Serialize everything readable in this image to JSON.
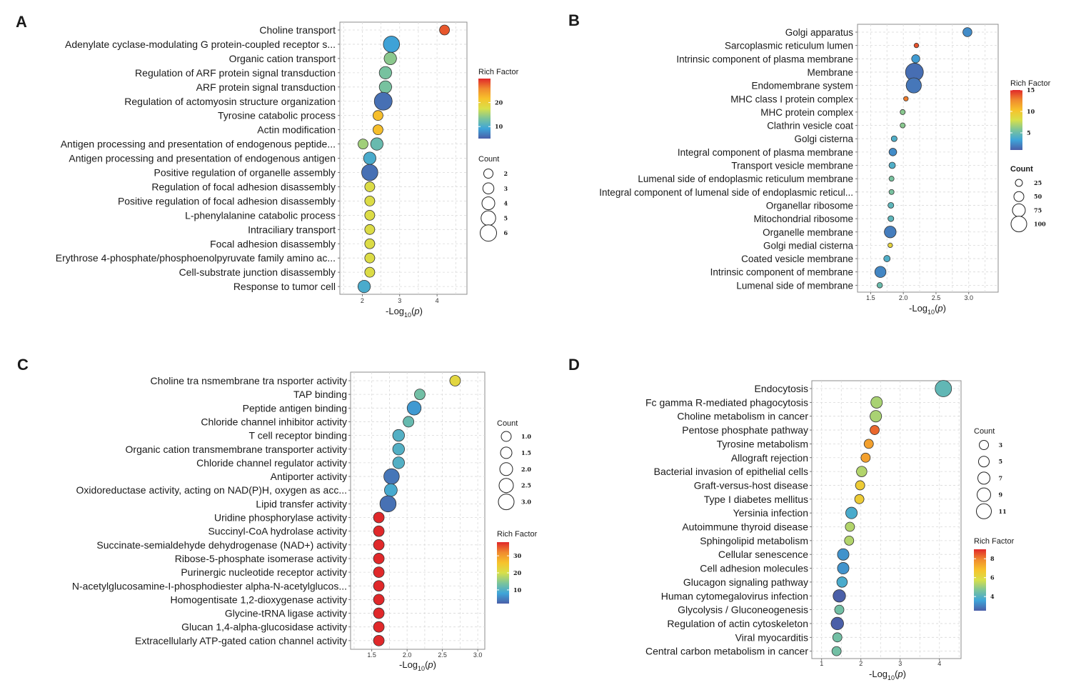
{
  "colors": {
    "grid": "#d9d9d9",
    "frame": "#8c8c8c",
    "bubble_stroke": "#333333",
    "gradient": [
      "#4a5fa8",
      "#3ea5d9",
      "#7cc49a",
      "#d8e04a",
      "#f7c22b",
      "#f08a2e",
      "#e0282a"
    ]
  },
  "chart_data": [
    {
      "panel": "A",
      "type": "scatter",
      "xlabel_base": "-Log",
      "xlabel_sub": "10",
      "xlabel_p": "p",
      "xlim": [
        1.4,
        4.8
      ],
      "xticks": [
        "2",
        "3",
        "4"
      ],
      "xtick_values": [
        2,
        3,
        4
      ],
      "terms": [
        "Choline transport",
        "Adenylate cyclase-modulating G protein-coupled receptor s...",
        "Organic cation transport",
        "Regulation of ARF protein signal transduction",
        "ARF protein signal transduction",
        "Regulation of actomyosin structure organization",
        "Tyrosine catabolic process",
        "Actin modification",
        "Antigen processing and presentation of endogenous peptide...",
        "Antigen processing and presentation of endogenous antigen",
        "Positive regulation of organelle assembly",
        "Regulation of focal adhesion disassembly",
        "Positive regulation of focal adhesion disassembly",
        "L-phenylalanine catabolic process",
        "Intraciliary transport",
        "Focal adhesion disassembly",
        "Erythrose 4-phosphate/phosphoenolpyruvate family amino ac...",
        "Cell-substrate junction disassembly",
        "Response to tumor cell"
      ],
      "points": [
        {
          "row": 0,
          "x": 4.2,
          "rich": 28,
          "count": 2
        },
        {
          "row": 1,
          "x": 2.78,
          "rich": 9,
          "count": 5
        },
        {
          "row": 2,
          "x": 2.75,
          "rich": 14,
          "count": 3
        },
        {
          "row": 3,
          "x": 2.62,
          "rich": 13,
          "count": 3
        },
        {
          "row": 4,
          "x": 2.62,
          "rich": 13,
          "count": 3
        },
        {
          "row": 5,
          "x": 2.56,
          "rich": 6,
          "count": 6
        },
        {
          "row": 6,
          "x": 2.42,
          "rich": 22,
          "count": 2
        },
        {
          "row": 7,
          "x": 2.42,
          "rich": 22,
          "count": 2
        },
        {
          "row": 8,
          "x": 2.02,
          "rich": 15,
          "count": 2
        },
        {
          "row": 8,
          "x": 2.39,
          "rich": 12,
          "count": 3
        },
        {
          "row": 9,
          "x": 2.2,
          "rich": 10,
          "count": 3
        },
        {
          "row": 10,
          "x": 2.2,
          "rich": 6,
          "count": 5
        },
        {
          "row": 11,
          "x": 2.2,
          "rich": 18,
          "count": 2
        },
        {
          "row": 12,
          "x": 2.2,
          "rich": 18,
          "count": 2
        },
        {
          "row": 13,
          "x": 2.2,
          "rich": 18,
          "count": 2
        },
        {
          "row": 14,
          "x": 2.2,
          "rich": 18,
          "count": 2
        },
        {
          "row": 15,
          "x": 2.2,
          "rich": 18,
          "count": 2
        },
        {
          "row": 16,
          "x": 2.2,
          "rich": 18,
          "count": 2
        },
        {
          "row": 17,
          "x": 2.2,
          "rich": 18,
          "count": 2
        },
        {
          "row": 18,
          "x": 2.05,
          "rich": 10,
          "count": 3
        }
      ],
      "color_legend": {
        "title": "Rich Factor",
        "ticks": [
          "20",
          "10"
        ],
        "tick_values": [
          20,
          10
        ],
        "range": [
          5,
          30
        ]
      },
      "size_legend": {
        "title": "Count",
        "ticks": [
          "2",
          "3",
          "4",
          "5",
          "6"
        ],
        "values": [
          2,
          3,
          4,
          5,
          6
        ]
      },
      "size_domain": [
        2,
        6
      ]
    },
    {
      "panel": "B",
      "type": "scatter",
      "xlabel_base": "-Log",
      "xlabel_sub": "10",
      "xlabel_p": "p",
      "xlim": [
        1.3,
        3.45
      ],
      "xticks": [
        "1.5",
        "2.0",
        "2.5",
        "3.0"
      ],
      "xtick_values": [
        1.5,
        2.0,
        2.5,
        3.0
      ],
      "terms": [
        "Golgi apparatus",
        "Sarcoplasmic reticulum lumen",
        "Intrinsic component of plasma membrane",
        "Membrane",
        "Endomembrane system",
        "MHC class I protein complex",
        "MHC protein complex",
        "Clathrin vesicle coat",
        "Golgi cisterna",
        "Integral component of plasma membrane",
        "Transport vesicle membrane",
        "Lumenal side of endoplasmic reticulum membrane",
        "Integral component of lumenal side of endoplasmic reticul...",
        "Organellar ribosome",
        "Mitochondrial ribosome",
        "Organelle membrane",
        "Golgi medial cisterna",
        "Coated vesicle membrane",
        "Intrinsic component of membrane",
        "Lumenal side of membrane"
      ],
      "points": [
        {
          "row": 0,
          "x": 2.98,
          "rich": 2.5,
          "count": 20
        },
        {
          "row": 1,
          "x": 2.2,
          "rich": 14,
          "count": 2
        },
        {
          "row": 2,
          "x": 2.19,
          "rich": 3,
          "count": 15
        },
        {
          "row": 3,
          "x": 2.17,
          "rich": 1.5,
          "count": 110
        },
        {
          "row": 4,
          "x": 2.16,
          "rich": 1.8,
          "count": 75
        },
        {
          "row": 5,
          "x": 2.04,
          "rich": 13,
          "count": 2
        },
        {
          "row": 6,
          "x": 1.99,
          "rich": 6,
          "count": 3
        },
        {
          "row": 7,
          "x": 1.99,
          "rich": 6,
          "count": 3
        },
        {
          "row": 8,
          "x": 1.86,
          "rich": 4,
          "count": 5
        },
        {
          "row": 9,
          "x": 1.84,
          "rich": 2.5,
          "count": 12
        },
        {
          "row": 10,
          "x": 1.83,
          "rich": 4,
          "count": 7
        },
        {
          "row": 11,
          "x": 1.82,
          "rich": 5.5,
          "count": 3
        },
        {
          "row": 12,
          "x": 1.82,
          "rich": 5.5,
          "count": 3
        },
        {
          "row": 13,
          "x": 1.81,
          "rich": 4.5,
          "count": 5
        },
        {
          "row": 14,
          "x": 1.81,
          "rich": 4.5,
          "count": 5
        },
        {
          "row": 15,
          "x": 1.8,
          "rich": 2,
          "count": 40
        },
        {
          "row": 16,
          "x": 1.8,
          "rich": 9,
          "count": 2
        },
        {
          "row": 17,
          "x": 1.75,
          "rich": 4,
          "count": 7
        },
        {
          "row": 18,
          "x": 1.65,
          "rich": 2.3,
          "count": 35
        },
        {
          "row": 19,
          "x": 1.64,
          "rich": 5,
          "count": 4
        }
      ],
      "color_legend": {
        "title": "Rich Factor",
        "ticks": [
          "15",
          "10",
          "5"
        ],
        "tick_values": [
          15,
          10,
          5
        ],
        "range": [
          1,
          15
        ]
      },
      "size_legend": {
        "title": "Count",
        "ticks": [
          "25",
          "50",
          "75",
          "100"
        ],
        "values": [
          25,
          50,
          75,
          100
        ]
      },
      "size_domain": [
        0,
        110
      ]
    },
    {
      "panel": "C",
      "type": "scatter",
      "xlabel_base": "-Log",
      "xlabel_sub": "10",
      "xlabel_p": "p",
      "xlim": [
        1.2,
        3.1
      ],
      "xticks": [
        "1.5",
        "2.0",
        "2.5",
        "3.0"
      ],
      "xtick_values": [
        1.5,
        2.0,
        2.5,
        3.0
      ],
      "terms": [
        "Choline tra nsmembrane tra nsporter activity",
        "TAP binding",
        "Peptide antigen binding",
        "Chloride channel inhibitor activity",
        "T cell receptor binding",
        "Organic cation transmembrane transporter activity",
        "Chloride channel regulator activity",
        "Antiporter activity",
        "Oxidoreductase activity, acting on NAD(P)H, oxygen as acc...",
        "Lipid transfer activity",
        "Uridine phosphorylase activity",
        "Succinyl-CoA hydrolase activity",
        "Succinate-semialdehyde dehydrogenase (NAD+) activity",
        "Ribose-5-phosphate isomerase activity",
        "Purinergic nucleotide receptor activity",
        "N-acetylglucosamine-I-phosphodiester alpha-N-acetylglucos...",
        "Homogentisate 1,2-dioxygenase activity",
        "Glycine-tRNA ligase activity",
        "Glucan 1,4-alpha-glucosidase activity",
        "Extracellularly ATP-gated cation channel activity"
      ],
      "points": [
        {
          "row": 0,
          "x": 2.68,
          "rich": 22,
          "count": 1.0
        },
        {
          "row": 1,
          "x": 2.18,
          "rich": 13,
          "count": 1.0
        },
        {
          "row": 2,
          "x": 2.1,
          "rich": 7,
          "count": 2.0
        },
        {
          "row": 3,
          "x": 2.02,
          "rich": 12,
          "count": 1.0
        },
        {
          "row": 4,
          "x": 1.88,
          "rich": 10,
          "count": 1.3
        },
        {
          "row": 5,
          "x": 1.88,
          "rich": 10,
          "count": 1.3
        },
        {
          "row": 6,
          "x": 1.88,
          "rich": 10,
          "count": 1.3
        },
        {
          "row": 7,
          "x": 1.78,
          "rich": 4,
          "count": 2.6
        },
        {
          "row": 8,
          "x": 1.77,
          "rich": 9,
          "count": 1.6
        },
        {
          "row": 9,
          "x": 1.73,
          "rich": 3.5,
          "count": 2.9
        },
        {
          "row": 10,
          "x": 1.6,
          "rich": 38,
          "count": 1.0
        },
        {
          "row": 11,
          "x": 1.6,
          "rich": 38,
          "count": 1.0
        },
        {
          "row": 12,
          "x": 1.6,
          "rich": 38,
          "count": 1.0
        },
        {
          "row": 13,
          "x": 1.6,
          "rich": 38,
          "count": 1.0
        },
        {
          "row": 14,
          "x": 1.6,
          "rich": 38,
          "count": 1.0
        },
        {
          "row": 15,
          "x": 1.6,
          "rich": 38,
          "count": 1.0
        },
        {
          "row": 16,
          "x": 1.6,
          "rich": 38,
          "count": 1.0
        },
        {
          "row": 17,
          "x": 1.6,
          "rich": 38,
          "count": 1.0
        },
        {
          "row": 18,
          "x": 1.6,
          "rich": 38,
          "count": 1.0
        },
        {
          "row": 19,
          "x": 1.6,
          "rich": 38,
          "count": 1.0
        }
      ],
      "color_legend": {
        "title": "Rich Factor",
        "ticks": [
          "30",
          "20",
          "10"
        ],
        "tick_values": [
          30,
          20,
          10
        ],
        "range": [
          2,
          38
        ]
      },
      "size_legend": {
        "title": "Count",
        "ticks": [
          "1.0",
          "1.5",
          "2.0",
          "2.5",
          "3.0"
        ],
        "values": [
          1.0,
          1.5,
          2.0,
          2.5,
          3.0
        ]
      },
      "size_domain": [
        1.0,
        3.0
      ]
    },
    {
      "panel": "D",
      "type": "scatter",
      "xlabel_base": "-Log",
      "xlabel_sub": "10",
      "xlabel_p": "p",
      "xlim": [
        0.75,
        4.55
      ],
      "xticks": [
        "1",
        "2",
        "3",
        "4"
      ],
      "xtick_values": [
        1,
        2,
        3,
        4
      ],
      "terms": [
        "Endocytosis",
        "Fc gamma R-mediated phagocytosis",
        "Choline metabolism in cancer",
        "Pentose phosphate pathway",
        "Tyrosine metabolism",
        "Allograft rejection",
        "Bacterial invasion of epithelial cells",
        "Graft-versus-host disease",
        "Type I diabetes mellitus",
        "Yersinia infection",
        "Autoimmune thyroid disease",
        "Sphingolipid metabolism",
        "Cellular senescence",
        "Cell adhesion molecules",
        "Glucagon signaling pathway",
        "Human cytomegalovirus infection",
        "Glycolysis / Gluconeogenesis",
        "Regulation of actin cytoskeleton",
        "Viral myocarditis",
        "Central carbon metabolism in cancer"
      ],
      "points": [
        {
          "row": 0,
          "x": 4.1,
          "rich": 4.2,
          "count": 11
        },
        {
          "row": 1,
          "x": 2.4,
          "rich": 5.2,
          "count": 5
        },
        {
          "row": 2,
          "x": 2.38,
          "rich": 5.2,
          "count": 5
        },
        {
          "row": 3,
          "x": 2.35,
          "rich": 8.3,
          "count": 3
        },
        {
          "row": 4,
          "x": 2.2,
          "rich": 7.5,
          "count": 3
        },
        {
          "row": 5,
          "x": 2.12,
          "rich": 7.5,
          "count": 3
        },
        {
          "row": 6,
          "x": 2.02,
          "rich": 5.3,
          "count": 4
        },
        {
          "row": 7,
          "x": 1.98,
          "rich": 6.5,
          "count": 3
        },
        {
          "row": 8,
          "x": 1.96,
          "rich": 6.5,
          "count": 3
        },
        {
          "row": 9,
          "x": 1.76,
          "rich": 3.8,
          "count": 5
        },
        {
          "row": 10,
          "x": 1.72,
          "rich": 5.3,
          "count": 3
        },
        {
          "row": 11,
          "x": 1.7,
          "rich": 5.3,
          "count": 3
        },
        {
          "row": 12,
          "x": 1.55,
          "rich": 3.3,
          "count": 5
        },
        {
          "row": 13,
          "x": 1.55,
          "rich": 3.3,
          "count": 5
        },
        {
          "row": 14,
          "x": 1.52,
          "rich": 3.8,
          "count": 4
        },
        {
          "row": 15,
          "x": 1.45,
          "rich": 2.5,
          "count": 6
        },
        {
          "row": 16,
          "x": 1.45,
          "rich": 4.5,
          "count": 3
        },
        {
          "row": 17,
          "x": 1.4,
          "rich": 2.5,
          "count": 6
        },
        {
          "row": 18,
          "x": 1.4,
          "rich": 4.5,
          "count": 3
        },
        {
          "row": 19,
          "x": 1.38,
          "rich": 4.5,
          "count": 3
        }
      ],
      "color_legend": {
        "title": "Rich Factor",
        "ticks": [
          "8",
          "6",
          "4"
        ],
        "tick_values": [
          8,
          6,
          4
        ],
        "range": [
          2.5,
          9
        ]
      },
      "size_legend": {
        "title": "Count",
        "ticks": [
          "3",
          "5",
          "7",
          "9",
          "11"
        ],
        "values": [
          3,
          5,
          7,
          9,
          11
        ]
      },
      "size_domain": [
        3,
        11
      ]
    }
  ]
}
